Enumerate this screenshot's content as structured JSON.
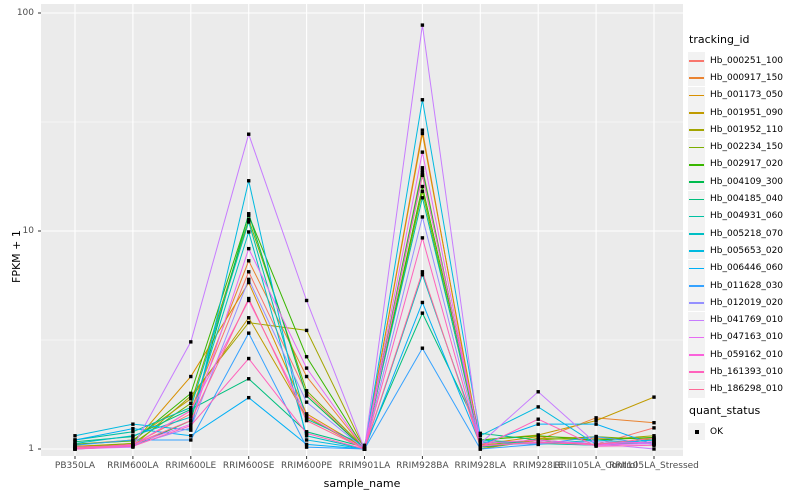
{
  "chart_data": {
    "type": "line",
    "title": "",
    "xlabel": "sample_name",
    "ylabel": "FPKM + 1",
    "yscale": "log10",
    "ylim": [
      1,
      100
    ],
    "yticks": [
      1,
      10,
      100
    ],
    "ytick_labels": [
      "1",
      "10",
      "100"
    ],
    "grid": true,
    "panel_bg": "#ebebeb",
    "grid_color": "#ffffff",
    "tick_color": "#333333",
    "point_color": "#000000",
    "legend_position": "right",
    "legend_title": "tracking_id",
    "legend2_title": "quant_status",
    "legend2_items": [
      {
        "label": "OK"
      }
    ],
    "categories": [
      "PB350LA",
      "RRIM600LA",
      "RRIM600LE",
      "RRIM600SE",
      "RRIM600PE",
      "RRIM901LA",
      "RRIM928BA",
      "RRIM928LA",
      "RRIM928LE",
      "RRII105LA_Control",
      "RRII105LA_Stressed"
    ],
    "series": [
      {
        "name": "Hb_000251_100",
        "color": "#F8766D",
        "values": [
          1.02,
          1.05,
          1.45,
          6.5,
          1.8,
          1.0,
          18.5,
          1.02,
          1.08,
          1.05,
          1.25
        ]
      },
      {
        "name": "Hb_000917_150",
        "color": "#EA8331",
        "values": [
          1.0,
          1.04,
          1.5,
          7.3,
          2.15,
          1.0,
          29.0,
          1.0,
          1.1,
          1.39,
          1.32
        ]
      },
      {
        "name": "Hb_001173_050",
        "color": "#D89000",
        "values": [
          1.03,
          1.06,
          2.15,
          5.8,
          1.45,
          1.01,
          28.0,
          1.05,
          1.14,
          1.12,
          1.12
        ]
      },
      {
        "name": "Hb_001951_090",
        "color": "#C09B00",
        "values": [
          1.05,
          1.1,
          1.7,
          4.0,
          1.4,
          1.0,
          18.0,
          1.1,
          1.16,
          1.35,
          1.73
        ]
      },
      {
        "name": "Hb_001952_110",
        "color": "#A3A500",
        "values": [
          1.0,
          1.03,
          1.75,
          3.8,
          3.5,
          1.0,
          19.5,
          1.0,
          1.12,
          1.1,
          1.15
        ]
      },
      {
        "name": "Hb_002234_150",
        "color": "#7CAE00",
        "values": [
          1.02,
          1.06,
          1.62,
          11.3,
          1.85,
          1.01,
          15.2,
          1.04,
          1.1,
          1.14,
          1.1
        ]
      },
      {
        "name": "Hb_002917_020",
        "color": "#39B600",
        "values": [
          1.05,
          1.09,
          1.8,
          11.8,
          2.65,
          1.0,
          16.0,
          1.1,
          1.15,
          1.1,
          1.13
        ]
      },
      {
        "name": "Hb_004109_300",
        "color": "#00BB4E",
        "values": [
          1.01,
          1.03,
          1.35,
          12.0,
          1.75,
          1.0,
          19.0,
          1.02,
          1.08,
          1.05,
          1.06
        ]
      },
      {
        "name": "Hb_004185_040",
        "color": "#00BF7D",
        "values": [
          1.08,
          1.14,
          1.52,
          2.1,
          1.2,
          1.02,
          4.2,
          1.18,
          1.1,
          1.05,
          1.1
        ]
      },
      {
        "name": "Hb_004931_060",
        "color": "#00C1A3",
        "values": [
          1.1,
          1.2,
          1.55,
          11.0,
          1.37,
          1.04,
          14.2,
          1.1,
          1.06,
          1.04,
          1.08
        ]
      },
      {
        "name": "Hb_005218_070",
        "color": "#00BFC4",
        "values": [
          1.06,
          1.15,
          1.4,
          9.9,
          1.15,
          1.0,
          6.3,
          1.08,
          1.05,
          1.1,
          1.06
        ]
      },
      {
        "name": "Hb_005653_020",
        "color": "#00BAE0",
        "values": [
          1.15,
          1.3,
          1.22,
          17.0,
          1.1,
          1.0,
          40.0,
          1.15,
          1.56,
          1.05,
          1.1
        ]
      },
      {
        "name": "Hb_006446_060",
        "color": "#00B0F6",
        "values": [
          1.1,
          1.24,
          1.15,
          1.72,
          1.05,
          1.0,
          4.7,
          1.05,
          1.3,
          1.3,
          1.05
        ]
      },
      {
        "name": "Hb_011628_030",
        "color": "#35A2FF",
        "values": [
          1.04,
          1.1,
          1.1,
          3.4,
          1.02,
          1.0,
          2.9,
          1.0,
          1.05,
          1.14,
          1.05
        ]
      },
      {
        "name": "Hb_012019_020",
        "color": "#9590FF",
        "values": [
          1.0,
          1.04,
          1.25,
          6.0,
          1.64,
          1.0,
          11.6,
          1.04,
          1.06,
          1.08,
          1.06
        ]
      },
      {
        "name": "Hb_041769_010",
        "color": "#C77CFF",
        "values": [
          1.0,
          1.02,
          3.1,
          27.8,
          4.8,
          1.0,
          88.0,
          1.06,
          1.83,
          1.06,
          1.0
        ]
      },
      {
        "name": "Hb_047163_010",
        "color": "#E76BF3",
        "values": [
          1.0,
          1.05,
          1.3,
          8.3,
          2.35,
          1.0,
          23.0,
          1.03,
          1.08,
          1.04,
          1.06
        ]
      },
      {
        "name": "Hb_059162_010",
        "color": "#FA62DB",
        "values": [
          1.02,
          1.04,
          1.5,
          4.8,
          1.42,
          1.0,
          18.2,
          1.06,
          1.1,
          1.05,
          1.08
        ]
      },
      {
        "name": "Hb_161393_010",
        "color": "#FF62BC",
        "values": [
          1.0,
          1.03,
          1.28,
          2.6,
          1.18,
          1.0,
          9.3,
          1.02,
          1.37,
          1.03,
          1.04
        ]
      },
      {
        "name": "Hb_186298_010",
        "color": "#FF6A98",
        "values": [
          1.01,
          1.05,
          1.35,
          4.9,
          1.35,
          1.0,
          6.5,
          1.04,
          1.07,
          1.05,
          1.12
        ]
      }
    ]
  }
}
